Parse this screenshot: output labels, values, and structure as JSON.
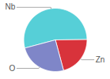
{
  "chart_data": {
    "type": "pie",
    "categories": [
      "Nb",
      "Zn",
      "O"
    ],
    "values": [
      54,
      21,
      25
    ],
    "colors": [
      "#56cfd7",
      "#d8333b",
      "#7f86c8"
    ]
  }
}
